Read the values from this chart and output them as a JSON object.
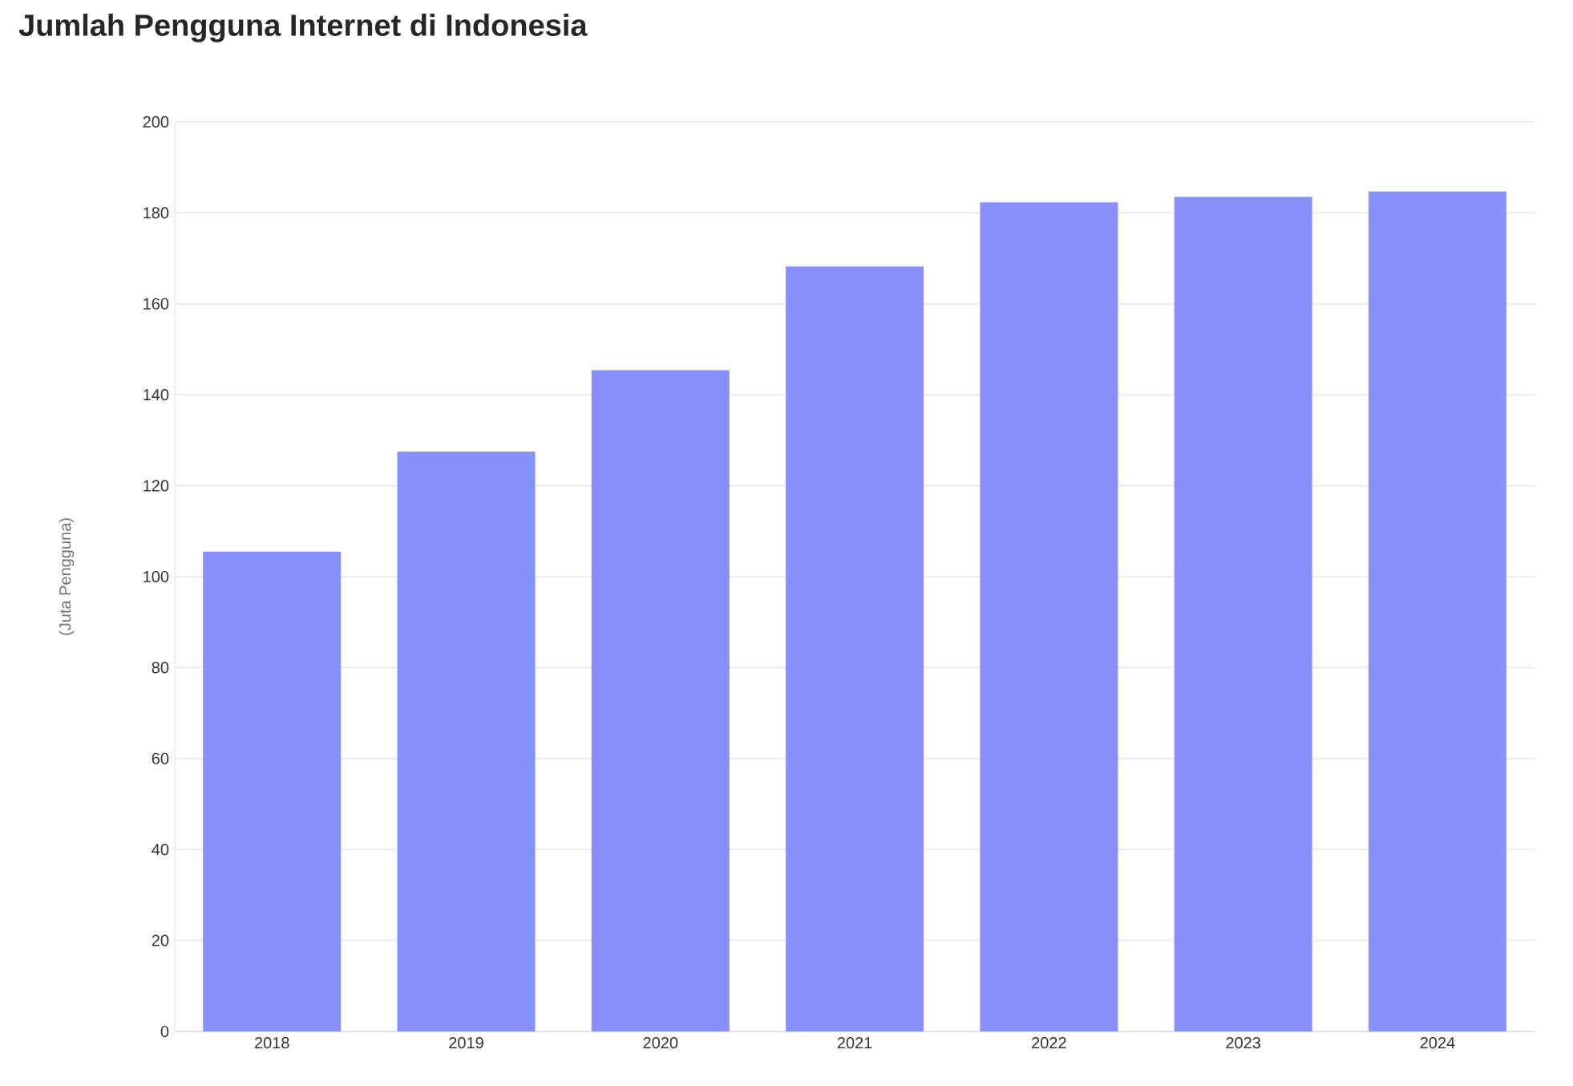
{
  "chart_data": {
    "type": "bar",
    "title": "Jumlah Pengguna Internet di Indonesia",
    "ylabel": "(Juta Pengguna)",
    "categories": [
      "2018",
      "2019",
      "2020",
      "2021",
      "2022",
      "2023",
      "2024"
    ],
    "values": [
      105.5,
      127.5,
      145.4,
      168.2,
      182.3,
      183.5,
      184.7
    ],
    "color": "#8891fb",
    "ylim": [
      0,
      200
    ],
    "yticks": [
      0,
      20,
      40,
      60,
      80,
      100,
      120,
      140,
      160,
      180,
      200
    ],
    "grid": "y"
  }
}
